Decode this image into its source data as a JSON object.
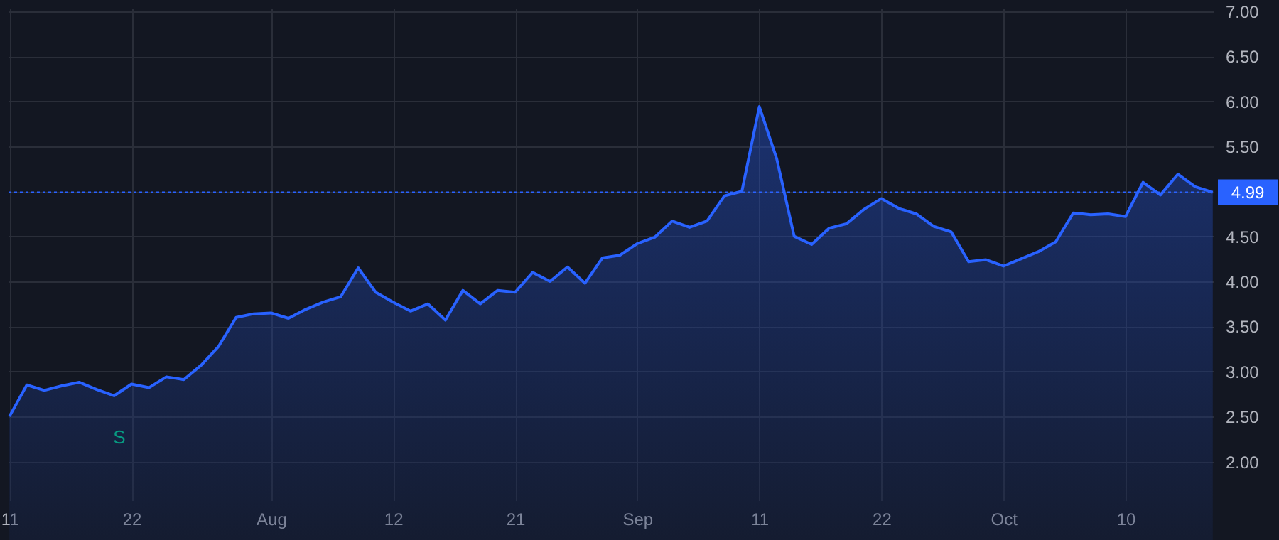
{
  "chart_data": {
    "type": "area",
    "categories": [
      "11",
      null,
      null,
      null,
      null,
      null,
      null,
      "22",
      null,
      null,
      null,
      null,
      null,
      null,
      null,
      "Aug",
      null,
      null,
      null,
      null,
      null,
      null,
      "12",
      null,
      null,
      null,
      null,
      null,
      null,
      "21",
      null,
      null,
      null,
      null,
      null,
      null,
      "Sep",
      null,
      null,
      null,
      null,
      null,
      null,
      "11",
      null,
      null,
      null,
      null,
      null,
      null,
      "22",
      null,
      null,
      null,
      null,
      null,
      null,
      "Oct",
      null,
      null,
      null,
      null,
      null,
      null,
      "10",
      null,
      null,
      null,
      null,
      null
    ],
    "series": [
      {
        "color": "#2962ff",
        "values": [
          2.5,
          2.85,
          2.79,
          2.84,
          2.88,
          2.8,
          2.73,
          2.86,
          2.82,
          2.94,
          2.91,
          3.07,
          3.28,
          3.6,
          3.64,
          3.65,
          3.59,
          3.69,
          3.77,
          3.83,
          4.15,
          3.88,
          3.77,
          3.67,
          3.75,
          3.57,
          3.9,
          3.75,
          3.9,
          3.88,
          4.1,
          4.0,
          4.16,
          3.98,
          4.26,
          4.29,
          4.42,
          4.49,
          4.67,
          4.6,
          4.67,
          4.95,
          5.0,
          5.94,
          5.36,
          4.5,
          4.41,
          4.59,
          4.64,
          4.8,
          4.92,
          4.81,
          4.75,
          4.61,
          4.55,
          4.22,
          4.24,
          4.17,
          4.25,
          4.33,
          4.44,
          4.76,
          4.74,
          4.75,
          4.72,
          5.1,
          4.96,
          5.19,
          5.05,
          4.99
        ]
      }
    ],
    "ylim": [
      1.57,
      7.03
    ],
    "yticks": [
      {
        "value": 2,
        "label": "2.00"
      },
      {
        "value": 2.5,
        "label": "2.50"
      },
      {
        "value": 3,
        "label": "3.00"
      },
      {
        "value": 3.5,
        "label": "3.50"
      },
      {
        "value": 4,
        "label": "4.00"
      },
      {
        "value": 4.5,
        "label": "4.50"
      },
      {
        "value": 5,
        "label": null
      },
      {
        "value": 5.5,
        "label": "5.50"
      },
      {
        "value": 6,
        "label": "6.00"
      },
      {
        "value": 6.5,
        "label": "6.50"
      },
      {
        "value": 7,
        "label": "7.00"
      }
    ],
    "ref_lines": [
      {
        "axis": "y",
        "value": 4.99,
        "label": "4.99",
        "color": "#2962ff",
        "line_style": "dotted"
      }
    ],
    "annotations": [
      "S"
    ],
    "grid": true,
    "marker": "none",
    "line_style": "solid"
  }
}
